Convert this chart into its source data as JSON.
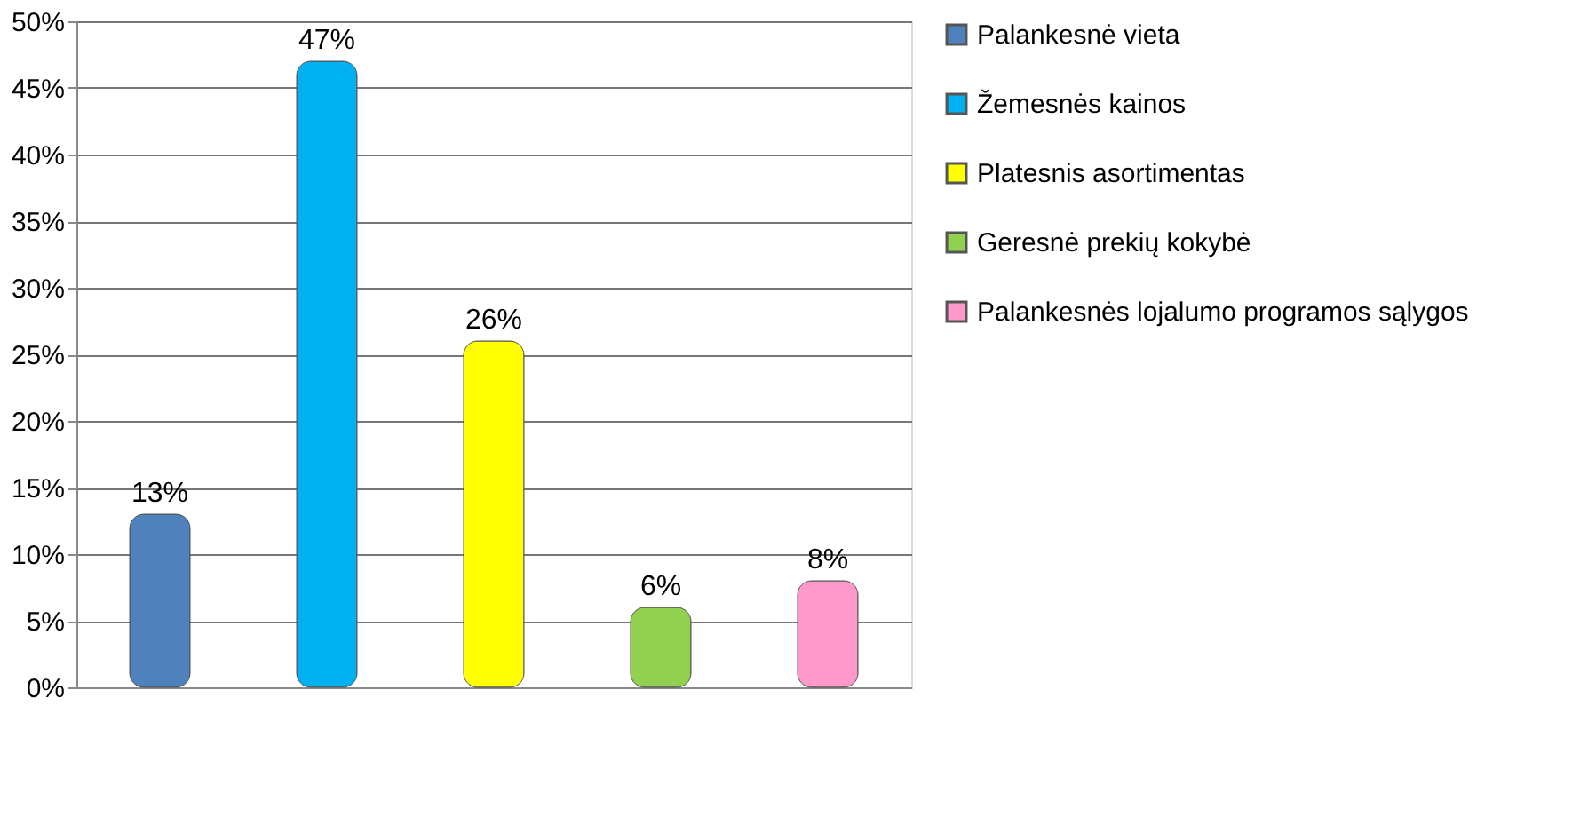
{
  "chart_data": {
    "type": "bar",
    "categories": [
      null,
      null,
      null,
      null,
      null
    ],
    "series": [
      {
        "name": "Palankesnė vieta",
        "color": "#4f81bd",
        "values": [
          13,
          null,
          null,
          null,
          null
        ],
        "value_labels": [
          "13%",
          null,
          null,
          null,
          null
        ]
      },
      {
        "name": "Žemesnės kainos",
        "color": "#00b0f0",
        "values": [
          null,
          47,
          null,
          null,
          null
        ],
        "value_labels": [
          null,
          "47%",
          null,
          null,
          null
        ]
      },
      {
        "name": "Platesnis asortimentas",
        "color": "#ffff00",
        "values": [
          null,
          null,
          26,
          null,
          null
        ],
        "value_labels": [
          null,
          null,
          "26%",
          null,
          null
        ]
      },
      {
        "name": "Geresnė prekių kokybė",
        "color": "#92d050",
        "values": [
          null,
          null,
          null,
          6,
          null
        ],
        "value_labels": [
          null,
          null,
          null,
          "6%",
          null
        ]
      },
      {
        "name": "Palankesnės lojalumo programos sąlygos",
        "color": "#ff99cc",
        "values": [
          null,
          null,
          null,
          null,
          8
        ],
        "value_labels": [
          null,
          null,
          null,
          null,
          "8%"
        ]
      }
    ],
    "ylim": [
      0,
      50
    ],
    "yticks": [
      {
        "value": 0,
        "label": "0%"
      },
      {
        "value": 5,
        "label": "5%"
      },
      {
        "value": 10,
        "label": "10%"
      },
      {
        "value": 15,
        "label": "15%"
      },
      {
        "value": 20,
        "label": "20%"
      },
      {
        "value": 25,
        "label": "25%"
      },
      {
        "value": 30,
        "label": "30%"
      },
      {
        "value": 35,
        "label": "35%"
      },
      {
        "value": 40,
        "label": "40%"
      },
      {
        "value": 45,
        "label": "45%"
      },
      {
        "value": 50,
        "label": "50%"
      }
    ],
    "tick_labels": "y",
    "grid": "y",
    "legend": "right"
  }
}
